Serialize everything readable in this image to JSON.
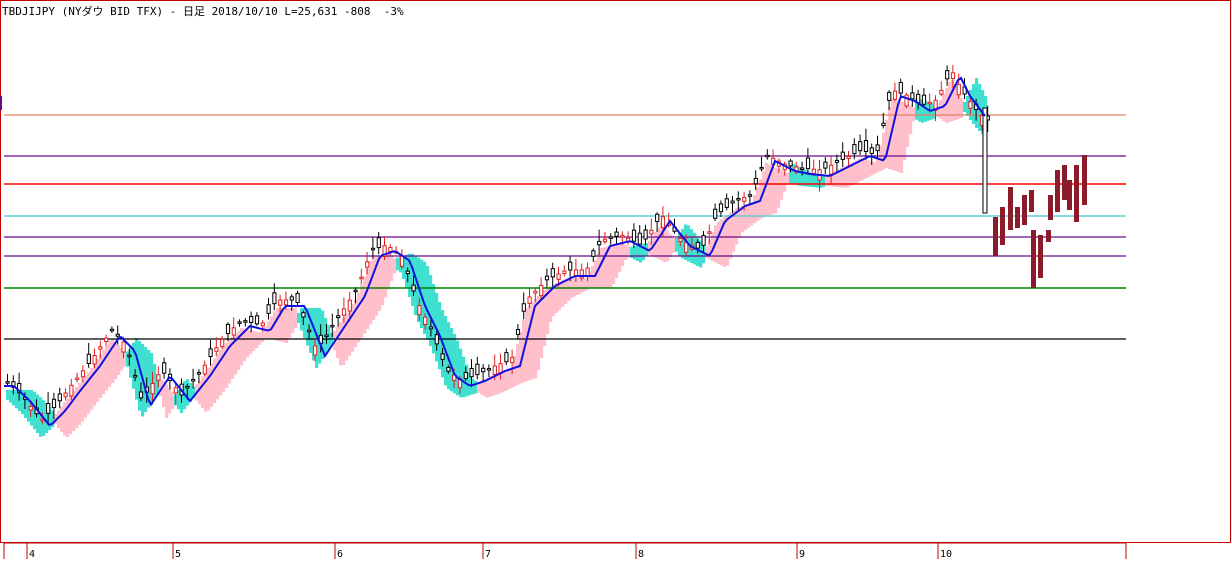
{
  "header": {
    "title": "TBDJIJPY (NYダウ BID TFX) - 日足 2018/10/10 L=25,631 -808  -3%"
  },
  "colors": {
    "frame": "#c00000",
    "bull_candle": "#e02020",
    "bear_candle": "#000000",
    "ma_line": "#1010e0",
    "cloud_up": "#ffc0cb",
    "cloud_down": "#40e0d0",
    "projection_bar": "#8b1a2a"
  },
  "chart_data": {
    "type": "candlestick",
    "title": "",
    "xlabel": "",
    "ylabel": "",
    "x_month_labels": [
      "4",
      "5",
      "6",
      "7",
      "8",
      "9",
      "10"
    ],
    "indicators": [
      "moving average",
      "ichimoku cloud"
    ],
    "approx_price_range": [
      23300,
      26900
    ],
    "horizontal_lines": [
      {
        "color": "#e08060",
        "note": "upper"
      },
      {
        "color": "#6a0a8a"
      },
      {
        "color": "#ff0000"
      },
      {
        "color": "#40c8d8"
      },
      {
        "color": "#6a0a8a"
      },
      {
        "color": "#6a0a8a"
      },
      {
        "color": "#008000"
      },
      {
        "color": "#000000"
      }
    ],
    "projection_bars": 17
  }
}
